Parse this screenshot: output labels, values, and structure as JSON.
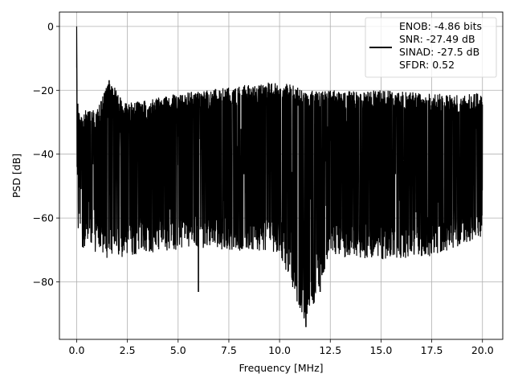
{
  "chart_data": {
    "type": "line",
    "xlabel": "Frequency [MHz]",
    "ylabel": "PSD [dB]",
    "xlim": [
      -0.85,
      21.0
    ],
    "ylim": [
      -98,
      4.5
    ],
    "xticks": [
      0.0,
      2.5,
      5.0,
      7.5,
      10.0,
      12.5,
      15.0,
      17.5,
      20.0
    ],
    "xtick_labels": [
      "0.0",
      "2.5",
      "5.0",
      "7.5",
      "10.0",
      "12.5",
      "15.0",
      "17.5",
      "20.0"
    ],
    "yticks": [
      0,
      -20,
      -40,
      -60,
      -80
    ],
    "ytick_labels": [
      "0",
      "−20",
      "−40",
      "−60",
      "−80"
    ],
    "grid": true,
    "legend_position": "top-right",
    "series": [
      {
        "name": "",
        "color": "#000000",
        "description_points": {
          "x": [
            0.0,
            0.02,
            0.05,
            0.1,
            0.2,
            0.5,
            1.0,
            1.6,
            2.5,
            3.5,
            5.0,
            7.5,
            10.0,
            11.3,
            12.5,
            15.0,
            17.5,
            20.0
          ],
          "y_upper": [
            0.0,
            -13,
            -22,
            -26,
            -27,
            -26,
            -26,
            -17,
            -24,
            -23,
            -21,
            -19,
            -17,
            -20,
            -20,
            -20,
            -21,
            -21
          ],
          "y_lower": [
            0.0,
            -44,
            -60,
            -68,
            -69,
            -70,
            -71,
            -73,
            -72,
            -71,
            -70,
            -70,
            -71,
            -94,
            -72,
            -73,
            -72,
            -66
          ]
        }
      }
    ],
    "legend": [
      "ENOB: -4.86 bits",
      "SNR: -27.49 dB",
      "SINAD: -27.5 dB",
      "SFDR: 0.52"
    ]
  }
}
